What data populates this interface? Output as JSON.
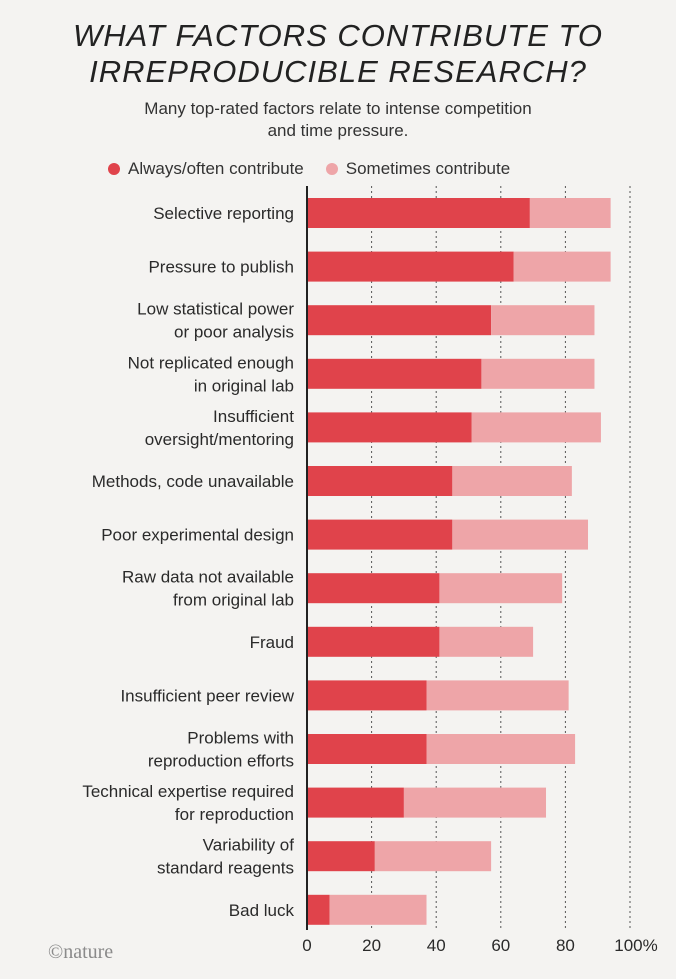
{
  "title": "WHAT FACTORS CONTRIBUTE TO\nIRREPRODUCIBLE RESEARCH?",
  "subtitle": "Many top-rated factors relate to intense competition\nand time pressure.",
  "credit": "©nature",
  "colors": {
    "always": "#e0434b",
    "sometimes": "#eea5a8",
    "background": "#f4f3f1"
  },
  "chart_data": {
    "type": "bar",
    "orientation": "horizontal",
    "stacked": true,
    "title": "WHAT FACTORS CONTRIBUTE TO IRREPRODUCIBLE RESEARCH?",
    "subtitle": "Many top-rated factors relate to intense competition and time pressure.",
    "categories": [
      [
        "Selective reporting"
      ],
      [
        "Pressure to publish"
      ],
      [
        "Low statistical power",
        "or poor analysis"
      ],
      [
        "Not replicated enough",
        "in original lab"
      ],
      [
        "Insufficient",
        "oversight/mentoring"
      ],
      [
        "Methods, code unavailable"
      ],
      [
        "Poor experimental design"
      ],
      [
        "Raw data not available",
        "from original lab"
      ],
      [
        "Fraud"
      ],
      [
        "Insufficient peer review"
      ],
      [
        "Problems with",
        "reproduction efforts"
      ],
      [
        "Technical expertise required",
        "for reproduction"
      ],
      [
        "Variability of",
        "standard reagents"
      ],
      [
        "Bad luck"
      ]
    ],
    "series": [
      {
        "name": "Always/often contribute",
        "values": [
          69,
          64,
          57,
          54,
          51,
          45,
          45,
          41,
          41,
          37,
          37,
          30,
          21,
          7
        ]
      },
      {
        "name": "Sometimes contribute",
        "values": [
          25,
          30,
          32,
          35,
          40,
          37,
          42,
          38,
          29,
          44,
          46,
          44,
          36,
          30
        ]
      }
    ],
    "xlim": [
      0,
      100
    ],
    "xticks": [
      "0",
      "20",
      "40",
      "60",
      "80",
      "100%"
    ],
    "grid": true,
    "legend_position": "top"
  }
}
